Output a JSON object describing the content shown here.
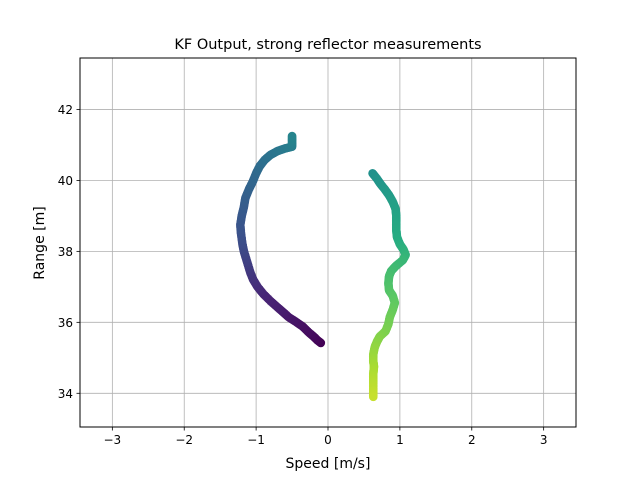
{
  "chart_data": {
    "type": "scatter",
    "title": "KF Output, strong reflector measurements",
    "xlabel": "Speed [m/s]",
    "ylabel": "Range [m]",
    "xlim": [
      -3.45,
      3.45
    ],
    "ylim": [
      33.05,
      43.45
    ],
    "xticks": [
      -3,
      -2,
      -1,
      0,
      1,
      2,
      3
    ],
    "xtick_labels": [
      "−3",
      "−2",
      "−1",
      "0",
      "1",
      "2",
      "3"
    ],
    "yticks": [
      34,
      36,
      38,
      40,
      42
    ],
    "ytick_labels": [
      "34",
      "36",
      "38",
      "40",
      "42"
    ],
    "grid": true,
    "colormap": "viridis",
    "series": [
      {
        "color_range": [
          0.0,
          0.45
        ],
        "points": [
          [
            -0.1,
            35.42
          ],
          [
            -0.15,
            35.5
          ],
          [
            -0.2,
            35.6
          ],
          [
            -0.27,
            35.72
          ],
          [
            -0.35,
            35.88
          ],
          [
            -0.45,
            36.02
          ],
          [
            -0.55,
            36.15
          ],
          [
            -0.62,
            36.28
          ],
          [
            -0.7,
            36.42
          ],
          [
            -0.8,
            36.6
          ],
          [
            -0.9,
            36.8
          ],
          [
            -0.98,
            37.0
          ],
          [
            -1.04,
            37.2
          ],
          [
            -1.08,
            37.4
          ],
          [
            -1.11,
            37.6
          ],
          [
            -1.14,
            37.8
          ],
          [
            -1.17,
            38.0
          ],
          [
            -1.19,
            38.2
          ],
          [
            -1.21,
            38.5
          ],
          [
            -1.22,
            38.75
          ],
          [
            -1.2,
            39.0
          ],
          [
            -1.17,
            39.25
          ],
          [
            -1.15,
            39.5
          ],
          [
            -1.1,
            39.75
          ],
          [
            -1.05,
            39.95
          ],
          [
            -1.0,
            40.2
          ],
          [
            -0.95,
            40.4
          ],
          [
            -0.88,
            40.58
          ],
          [
            -0.8,
            40.72
          ],
          [
            -0.7,
            40.83
          ],
          [
            -0.6,
            40.9
          ],
          [
            -0.5,
            40.95
          ],
          [
            -0.5,
            41.1
          ],
          [
            -0.5,
            41.25
          ]
        ]
      },
      {
        "color_range": [
          0.5,
          0.92
        ],
        "points": [
          [
            0.62,
            40.2
          ],
          [
            0.68,
            40.05
          ],
          [
            0.73,
            39.9
          ],
          [
            0.79,
            39.75
          ],
          [
            0.85,
            39.58
          ],
          [
            0.9,
            39.4
          ],
          [
            0.94,
            39.2
          ],
          [
            0.95,
            39.0
          ],
          [
            0.95,
            38.8
          ],
          [
            0.95,
            38.6
          ],
          [
            0.96,
            38.4
          ],
          [
            1.0,
            38.2
          ],
          [
            1.05,
            38.05
          ],
          [
            1.08,
            37.9
          ],
          [
            1.04,
            37.75
          ],
          [
            0.95,
            37.6
          ],
          [
            0.88,
            37.45
          ],
          [
            0.85,
            37.3
          ],
          [
            0.84,
            37.1
          ],
          [
            0.85,
            36.9
          ],
          [
            0.9,
            36.75
          ],
          [
            0.93,
            36.55
          ],
          [
            0.9,
            36.35
          ],
          [
            0.86,
            36.15
          ],
          [
            0.84,
            35.95
          ],
          [
            0.8,
            35.75
          ],
          [
            0.72,
            35.6
          ],
          [
            0.68,
            35.45
          ],
          [
            0.65,
            35.3
          ],
          [
            0.63,
            35.1
          ],
          [
            0.63,
            34.9
          ],
          [
            0.64,
            34.75
          ],
          [
            0.63,
            34.55
          ],
          [
            0.63,
            34.35
          ],
          [
            0.63,
            34.1
          ],
          [
            0.63,
            33.9
          ]
        ]
      }
    ]
  }
}
